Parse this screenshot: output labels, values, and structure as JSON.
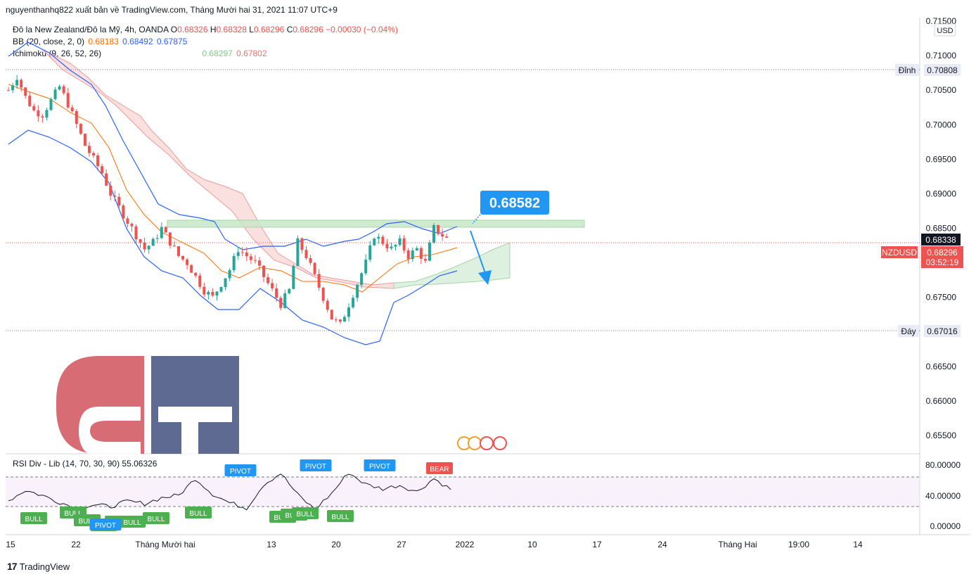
{
  "header": {
    "publisher": "nguyenthanhq822 xuất bản về TradingView.com, Tháng Mười hai 31, 2021 11:07 UTC+9"
  },
  "legend": {
    "symbol": "Đô la New Zealand/Đô la Mỹ, 4h, OANDA",
    "ohlc": [
      {
        "k": "O",
        "v": "0.68326"
      },
      {
        "k": "H",
        "v": "0.68328"
      },
      {
        "k": "L",
        "v": "0.68296"
      },
      {
        "k": "C",
        "v": "0.68296"
      }
    ],
    "change": "−0.00030 (−0.04%)",
    "bb": {
      "label": "BB (20, close, 2, 0)",
      "basis": "0.68183",
      "upper": "0.68492",
      "lower": "0.67875"
    },
    "ichimoku": {
      "label": "Ichimoku (9, 26, 52, 26)",
      "spanA": "0.68297",
      "spanB": "0.67802"
    }
  },
  "price_axis": {
    "currency": "USD",
    "ticks": [
      "0.71500",
      "0.71000",
      "0.70500",
      "0.70000",
      "0.69500",
      "0.69000",
      "0.68500",
      "0.68000",
      "0.67500",
      "0.67000",
      "0.66500",
      "0.66000",
      "0.65500"
    ],
    "top_label": "Đỉnh",
    "top_value": "0.70808",
    "bottom_label": "Đáy",
    "bottom_value": "0.67016",
    "marker_black": "0.68338",
    "symbol_tag": "NZDUSD",
    "price_tag": "0.68296",
    "countdown": "03:52:19"
  },
  "annotation": {
    "callout": "0.68582"
  },
  "rsi": {
    "label": "RSI Div - Lib (14, 70, 30, 90)",
    "value": "55.06326",
    "ticks": [
      "80.00000",
      "40.00000",
      "0.00000"
    ],
    "signals": [
      {
        "text": "BULL",
        "kind": "bull"
      },
      {
        "text": "BULL",
        "kind": "bull"
      },
      {
        "text": "BULL",
        "kind": "bull"
      },
      {
        "text": "PIVOT",
        "kind": "pivot"
      },
      {
        "text": "BULL",
        "kind": "bull"
      },
      {
        "text": "BULL",
        "kind": "bull"
      },
      {
        "text": "BULL",
        "kind": "bull"
      },
      {
        "text": "BULL",
        "kind": "bull"
      },
      {
        "text": "BULL",
        "kind": "bull"
      },
      {
        "text": "PIVOT",
        "kind": "pivot"
      },
      {
        "text": "BULL",
        "kind": "bull"
      },
      {
        "text": "BULL",
        "kind": "bull"
      },
      {
        "text": "BULL",
        "kind": "bull"
      },
      {
        "text": "PIVOT",
        "kind": "pivot"
      },
      {
        "text": "BULL",
        "kind": "bull"
      },
      {
        "text": "PIVOT",
        "kind": "pivot"
      },
      {
        "text": "BEAR",
        "kind": "bear"
      }
    ]
  },
  "time_axis": [
    "15",
    "22",
    "Tháng Mười hai",
    "13",
    "20",
    "27",
    "2022",
    "10",
    "17",
    "24",
    "Tháng Hai",
    "19:00",
    "14"
  ],
  "footer": {
    "brand": "TradingView"
  },
  "colors": {
    "up": "#26a69a",
    "down": "#ef5350",
    "bb_upper": "#2962ff",
    "bb_basis": "#ff6d00",
    "cloud_bull": "#a5d6a7",
    "cloud_bear": "#ef9a9a",
    "pivot": "#2196f3",
    "bull": "#4caf50",
    "bear": "#ef5350"
  },
  "chart_data": {
    "type": "candlestick",
    "symbol": "NZDUSD",
    "timeframe": "4h",
    "ylim": [
      0.65,
      0.716
    ],
    "resistance": 0.68582,
    "high_line": 0.70808,
    "low_line": 0.67016,
    "last_price": 0.68296,
    "close_path": [
      [
        0,
        0.705
      ],
      [
        2,
        0.707
      ],
      [
        4,
        0.704
      ],
      [
        6,
        0.702
      ],
      [
        8,
        0.7015
      ],
      [
        10,
        0.7035
      ],
      [
        12,
        0.7055
      ],
      [
        14,
        0.703
      ],
      [
        16,
        0.7
      ],
      [
        18,
        0.697
      ],
      [
        20,
        0.695
      ],
      [
        22,
        0.693
      ],
      [
        24,
        0.69
      ],
      [
        26,
        0.688
      ],
      [
        28,
        0.686
      ],
      [
        30,
        0.684
      ],
      [
        32,
        0.682
      ],
      [
        34,
        0.683
      ],
      [
        36,
        0.685
      ],
      [
        38,
        0.683
      ],
      [
        40,
        0.681
      ],
      [
        42,
        0.68
      ],
      [
        44,
        0.678
      ],
      [
        46,
        0.676
      ],
      [
        48,
        0.675
      ],
      [
        50,
        0.677
      ],
      [
        52,
        0.679
      ],
      [
        54,
        0.682
      ],
      [
        56,
        0.681
      ],
      [
        58,
        0.68
      ],
      [
        60,
        0.678
      ],
      [
        62,
        0.676
      ],
      [
        64,
        0.674
      ],
      [
        66,
        0.676
      ],
      [
        68,
        0.683
      ],
      [
        70,
        0.681
      ],
      [
        72,
        0.678
      ],
      [
        74,
        0.675
      ],
      [
        76,
        0.672
      ],
      [
        78,
        0.671
      ],
      [
        80,
        0.674
      ],
      [
        82,
        0.677
      ],
      [
        84,
        0.68
      ],
      [
        86,
        0.684
      ],
      [
        88,
        0.683
      ],
      [
        90,
        0.682
      ],
      [
        92,
        0.683
      ],
      [
        94,
        0.681
      ],
      [
        96,
        0.682
      ],
      [
        98,
        0.68
      ],
      [
        100,
        0.685
      ],
      [
        102,
        0.684
      ],
      [
        104,
        0.683
      ]
    ],
    "rsi_path": [
      [
        0,
        48
      ],
      [
        4,
        62
      ],
      [
        8,
        55
      ],
      [
        12,
        46
      ],
      [
        16,
        38
      ],
      [
        20,
        42
      ],
      [
        24,
        40
      ],
      [
        28,
        47
      ],
      [
        32,
        44
      ],
      [
        36,
        52
      ],
      [
        40,
        55
      ],
      [
        44,
        78
      ],
      [
        48,
        57
      ],
      [
        52,
        45
      ],
      [
        56,
        38
      ],
      [
        60,
        70
      ],
      [
        64,
        85
      ],
      [
        68,
        56
      ],
      [
        72,
        36
      ],
      [
        76,
        58
      ],
      [
        80,
        86
      ],
      [
        84,
        70
      ],
      [
        88,
        64
      ],
      [
        92,
        69
      ],
      [
        96,
        60
      ],
      [
        100,
        78
      ],
      [
        104,
        63
      ]
    ]
  }
}
